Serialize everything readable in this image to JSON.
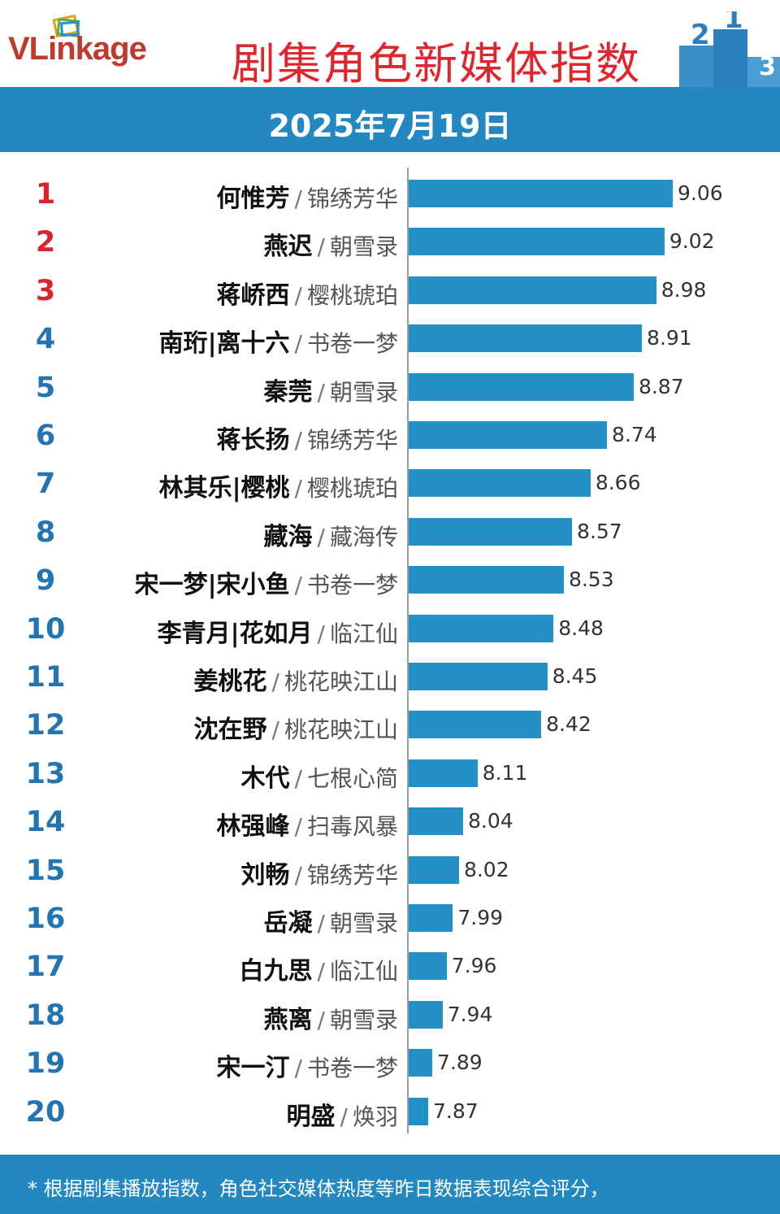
{
  "header": {
    "logo_text": "VLinkage",
    "title": "剧集角色新媒体指数",
    "date": "2025年7月19日",
    "accent_red": "#e0262c",
    "accent_blue": "#2388c2"
  },
  "chart_data": {
    "type": "bar",
    "orientation": "horizontal",
    "title": "剧集角色新媒体指数",
    "subtitle": "2025年7月19日",
    "xlabel": "",
    "ylabel": "",
    "grid": false,
    "bar_color": "#2490c8",
    "rows": [
      {
        "rank": "1",
        "name": "何惟芳",
        "drama": "锦绣芳华",
        "value": 9.06
      },
      {
        "rank": "2",
        "name": "燕迟",
        "drama": "朝雪录",
        "value": 9.02
      },
      {
        "rank": "3",
        "name": "蒋峤西",
        "drama": "樱桃琥珀",
        "value": 8.98
      },
      {
        "rank": "4",
        "name": "南珩|离十六",
        "drama": "书卷一梦",
        "value": 8.91
      },
      {
        "rank": "5",
        "name": "秦莞",
        "drama": "朝雪录",
        "value": 8.87
      },
      {
        "rank": "6",
        "name": "蒋长扬",
        "drama": "锦绣芳华",
        "value": 8.74
      },
      {
        "rank": "7",
        "name": "林其乐|樱桃",
        "drama": "樱桃琥珀",
        "value": 8.66
      },
      {
        "rank": "8",
        "name": "藏海",
        "drama": "藏海传",
        "value": 8.57
      },
      {
        "rank": "9",
        "name": "宋一梦|宋小鱼",
        "drama": "书卷一梦",
        "value": 8.53
      },
      {
        "rank": "10",
        "name": "李青月|花如月",
        "drama": "临江仙",
        "value": 8.48
      },
      {
        "rank": "11",
        "name": "姜桃花",
        "drama": "桃花映江山",
        "value": 8.45
      },
      {
        "rank": "12",
        "name": "沈在野",
        "drama": "桃花映江山",
        "value": 8.42
      },
      {
        "rank": "13",
        "name": "木代",
        "drama": "七根心简",
        "value": 8.11
      },
      {
        "rank": "14",
        "name": "林强峰",
        "drama": "扫毒风暴",
        "value": 8.04
      },
      {
        "rank": "15",
        "name": "刘畅",
        "drama": "锦绣芳华",
        "value": 8.02
      },
      {
        "rank": "16",
        "name": "岳凝",
        "drama": "朝雪录",
        "value": 7.99
      },
      {
        "rank": "17",
        "name": "白九思",
        "drama": "临江仙",
        "value": 7.96
      },
      {
        "rank": "18",
        "name": "燕离",
        "drama": "朝雪录",
        "value": 7.94
      },
      {
        "rank": "19",
        "name": "宋一汀",
        "drama": "书卷一梦",
        "value": 7.89
      },
      {
        "rank": "20",
        "name": "明盛",
        "drama": "焕羽",
        "value": 7.87
      }
    ]
  },
  "footer": {
    "note": "* 根据剧集播放指数，角色社交媒体热度等昨日数据表现综合评分，"
  }
}
